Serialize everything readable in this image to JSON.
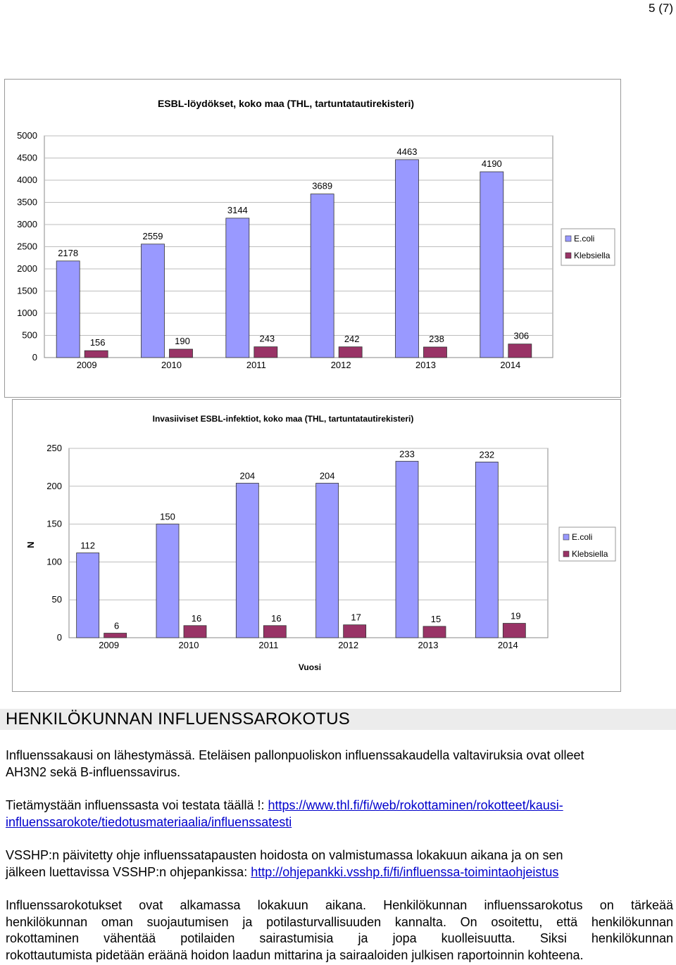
{
  "page_number": "5 (7)",
  "colors": {
    "ecoli": "#9999ff",
    "klebsiella": "#993366",
    "grid": "#bdbdbd",
    "link": "#0000cc"
  },
  "chart_data": [
    {
      "type": "bar",
      "title": "ESBL-löydökset, koko maa (THL, tartuntatautirekisteri)",
      "categories": [
        "2009",
        "2010",
        "2011",
        "2012",
        "2013",
        "2014"
      ],
      "series": [
        {
          "name": "E.coli",
          "values": [
            2178,
            2559,
            3144,
            3689,
            4463,
            4190
          ]
        },
        {
          "name": "Klebsiella",
          "values": [
            156,
            190,
            243,
            242,
            238,
            306
          ]
        }
      ],
      "xlabel": "",
      "ylabel": "",
      "ylim": [
        0,
        5000
      ],
      "yticks": [
        "0",
        "500",
        "1000",
        "1500",
        "2000",
        "2500",
        "3000",
        "3500",
        "4000",
        "4500",
        "5000"
      ],
      "grid": true,
      "legend": "right"
    },
    {
      "type": "bar",
      "title": "Invasiiviset ESBL-infektiot, koko maa (THL, tartuntatautirekisteri)",
      "categories": [
        "2009",
        "2010",
        "2011",
        "2012",
        "2013",
        "2014"
      ],
      "series": [
        {
          "name": "E.coli",
          "values": [
            112,
            150,
            204,
            204,
            233,
            232
          ]
        },
        {
          "name": "Klebsiella",
          "values": [
            6,
            16,
            16,
            17,
            15,
            19
          ]
        }
      ],
      "xlabel": "Vuosi",
      "ylabel": "N",
      "ylim": [
        0,
        250
      ],
      "yticks": [
        "0",
        "50",
        "100",
        "150",
        "200",
        "250"
      ],
      "grid": true,
      "legend": "right"
    }
  ],
  "section": {
    "heading": "HENKILÖKUNNAN INFLUENSSAROKOTUS",
    "p1_line1": "Influenssakausi on lähestymässä. Eteläisen pallonpuoliskon influenssakaudella valtaviruksia ovat olleet",
    "p1_line2": "AH3N2 sekä B-influenssavirus.",
    "p2_text": "Tietämystään influenssasta voi testata täällä !: ",
    "p2_link_line1": "https://www.thl.fi/fi/web/rokottaminen/rokotteet/kausi-",
    "p2_link_line2": "influenssarokote/tiedotusmateriaalia/influenssatesti",
    "p3_line1": "VSSHP:n päivitetty ohje influenssatapausten hoidosta on valmistumassa lokakuun aikana ja on sen",
    "p3_line2_text": "jälkeen luettavissa VSSHP:n ohjepankissa: ",
    "p3_link": "http://ohjepankki.vsshp.fi/fi/influenssa-toimintaohjeistus",
    "p4_line1": "Influenssarokotukset ovat alkamassa lokakuun aikana. Henkilökunnan influenssarokotus on tärkeää",
    "p4_line2": "henkilökunnan oman suojautumisen ja potilasturvallisuuden kannalta. On osoitettu, että henkilökunnan",
    "p4_line3": "rokottaminen vähentää potilaiden sairastumisia ja jopa kuolleisuutta. Siksi henkilökunnan",
    "p4_line4": "rokottautumista pidetään eräänä hoidon laadun mittarina ja sairaaloiden julkisen raportoinnin kohteena."
  }
}
